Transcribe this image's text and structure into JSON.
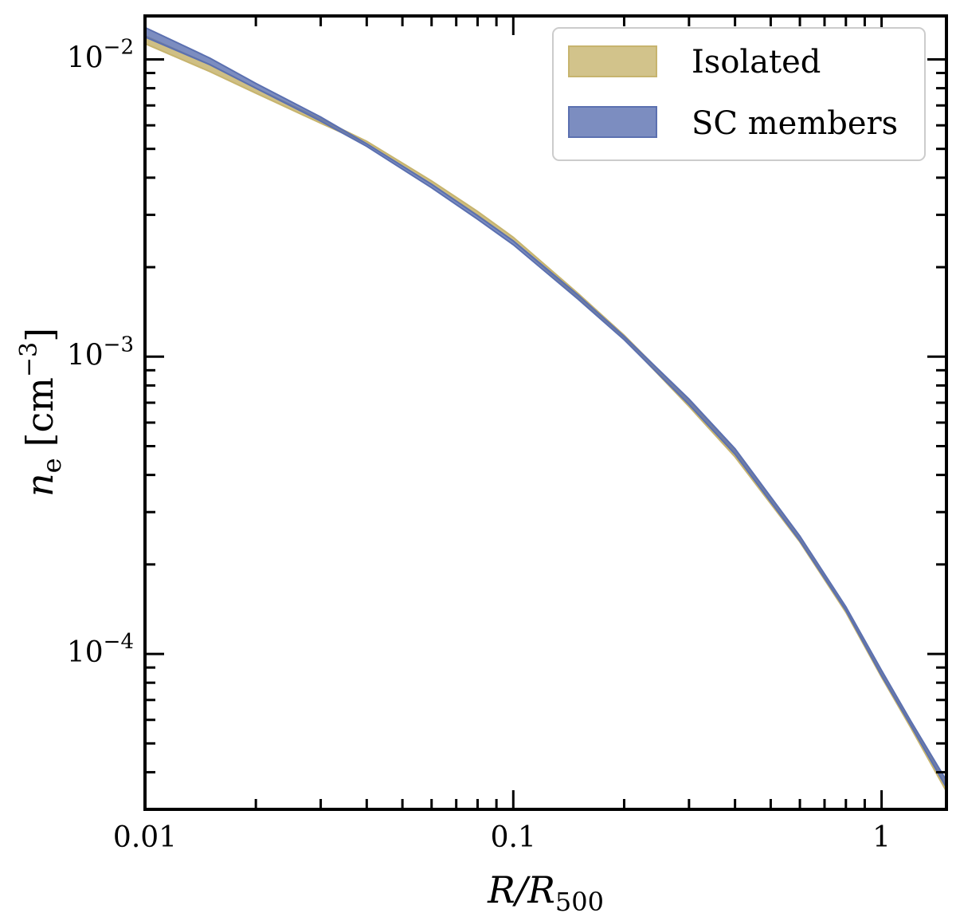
{
  "chart_data": {
    "type": "area",
    "title": "",
    "xlabel": "R/R500",
    "ylabel": "n_e [cm^-3]",
    "xlabel_parts": {
      "main": "R/R",
      "sub": "500"
    },
    "ylabel_parts": {
      "var": "n",
      "sub": "e",
      "bracket_open": "[cm",
      "sup": "−3",
      "bracket_close": "]"
    },
    "xscale": "log",
    "yscale": "log",
    "xlim": [
      0.01,
      1.5
    ],
    "ylim": [
      3e-05,
      0.014
    ],
    "x_ticks": [
      {
        "value": 0.01,
        "label": "0.01"
      },
      {
        "value": 0.1,
        "label": "0.1"
      },
      {
        "value": 1,
        "label": "1"
      }
    ],
    "y_ticks": [
      {
        "value": 0.01,
        "base": "10",
        "exp": "−2"
      },
      {
        "value": 0.001,
        "base": "10",
        "exp": "−3"
      },
      {
        "value": 0.0001,
        "base": "10",
        "exp": "−4"
      }
    ],
    "legend_position": "upper-right",
    "series": [
      {
        "name": "Isolated",
        "color": "#c7b46e",
        "x": [
          0.01,
          0.015,
          0.02,
          0.03,
          0.04,
          0.06,
          0.08,
          0.1,
          0.15,
          0.2,
          0.3,
          0.4,
          0.6,
          0.8,
          1.0,
          1.2,
          1.5
        ],
        "lower": [
          0.0113,
          0.0091,
          0.0077,
          0.0061,
          0.0052,
          0.0038,
          0.003,
          0.00245,
          0.00158,
          0.00115,
          0.00068,
          0.00046,
          0.000238,
          0.000138,
          8.35e-05,
          5.65e-05,
          3.45e-05
        ],
        "upper": [
          0.012,
          0.0096,
          0.008,
          0.0063,
          0.0053,
          0.0039,
          0.00308,
          0.00252,
          0.00163,
          0.00118,
          0.00071,
          0.00048,
          0.000247,
          0.000142,
          8.7e-05,
          5.85e-05,
          3.65e-05
        ]
      },
      {
        "name": "SC members",
        "color": "#5b70b0",
        "x": [
          0.01,
          0.015,
          0.02,
          0.03,
          0.04,
          0.06,
          0.08,
          0.1,
          0.15,
          0.2,
          0.3,
          0.4,
          0.6,
          0.8,
          1.0,
          1.2,
          1.5
        ],
        "lower": [
          0.0119,
          0.0096,
          0.008,
          0.0062,
          0.0051,
          0.0037,
          0.0029,
          0.00238,
          0.00156,
          0.00114,
          0.00069,
          0.00047,
          0.00024,
          0.00014,
          8.45e-05,
          5.75e-05,
          3.55e-05
        ],
        "upper": [
          0.0128,
          0.0101,
          0.0083,
          0.0064,
          0.0052,
          0.0038,
          0.00298,
          0.00245,
          0.00161,
          0.00117,
          0.00072,
          0.00049,
          0.000249,
          0.000144,
          8.8e-05,
          5.95e-05,
          3.75e-05
        ]
      }
    ]
  }
}
